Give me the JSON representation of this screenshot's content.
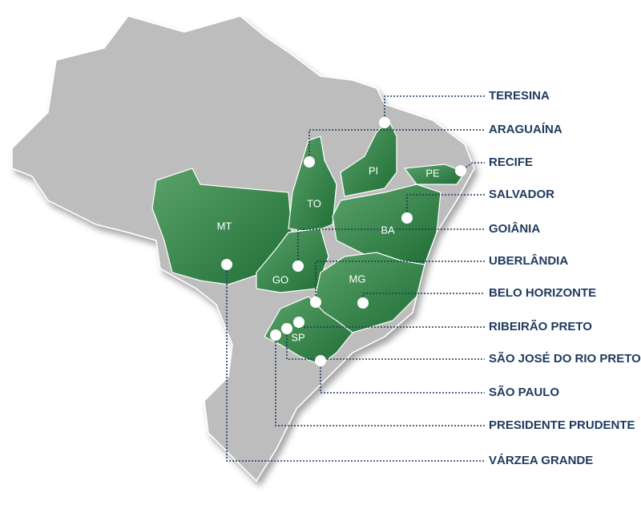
{
  "states": [
    {
      "label": "MT"
    },
    {
      "label": "TO"
    },
    {
      "label": "GO"
    },
    {
      "label": "PI"
    },
    {
      "label": "PE"
    },
    {
      "label": "BA"
    },
    {
      "label": "MG"
    },
    {
      "label": "SP"
    }
  ],
  "cities": [
    {
      "label": "TERESINA"
    },
    {
      "label": "ARAGUAÍNA"
    },
    {
      "label": "RECIFE"
    },
    {
      "label": "SALVADOR"
    },
    {
      "label": "GOIÂNIA"
    },
    {
      "label": "UBERLÂNDIA"
    },
    {
      "label": "BELO HORIZONTE"
    },
    {
      "label": "RIBEIRÃO PRETO"
    },
    {
      "label": "SÃO JOSÉ DO RIO PRETO"
    },
    {
      "label": "SÃO PAULO"
    },
    {
      "label": "PRESIDENTE PRUDENTE"
    },
    {
      "label": "VÁRZEA GRANDE"
    }
  ]
}
